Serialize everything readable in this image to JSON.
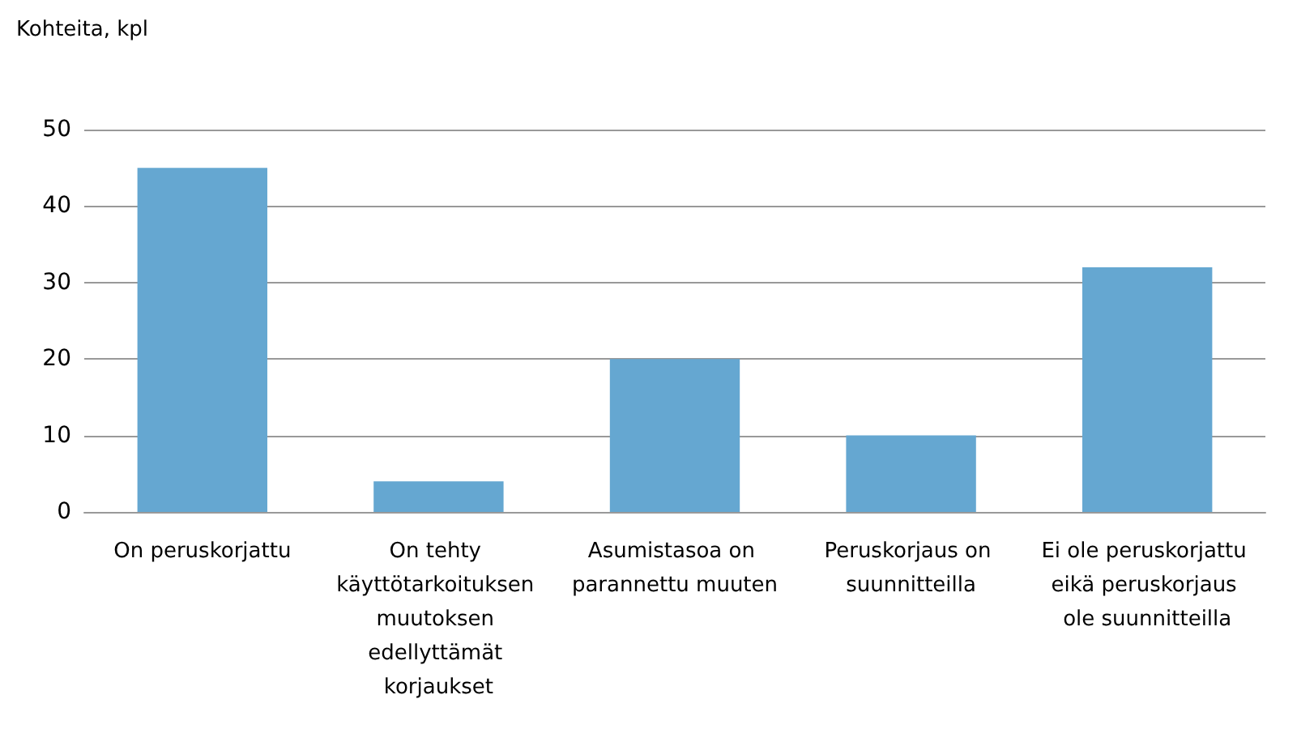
{
  "chart_data": {
    "type": "bar",
    "ylabel": "Kohteita, kpl",
    "categories": [
      "On peruskorjattu",
      "On tehty käyttötarkoituksen muutoksen edellyttämät korjaukset",
      "Asumistasoa on parannettu muuten",
      "Peruskorjaus on suunnitteilla",
      "Ei ole peruskorjattu eikä peruskorjaus ole suunnitteilla"
    ],
    "values": [
      45,
      4,
      20,
      10,
      32
    ],
    "color": "#65a7d1",
    "ylim": [
      0,
      50
    ],
    "yticks": [
      0,
      10,
      20,
      30,
      40,
      50
    ],
    "grid": "y"
  }
}
